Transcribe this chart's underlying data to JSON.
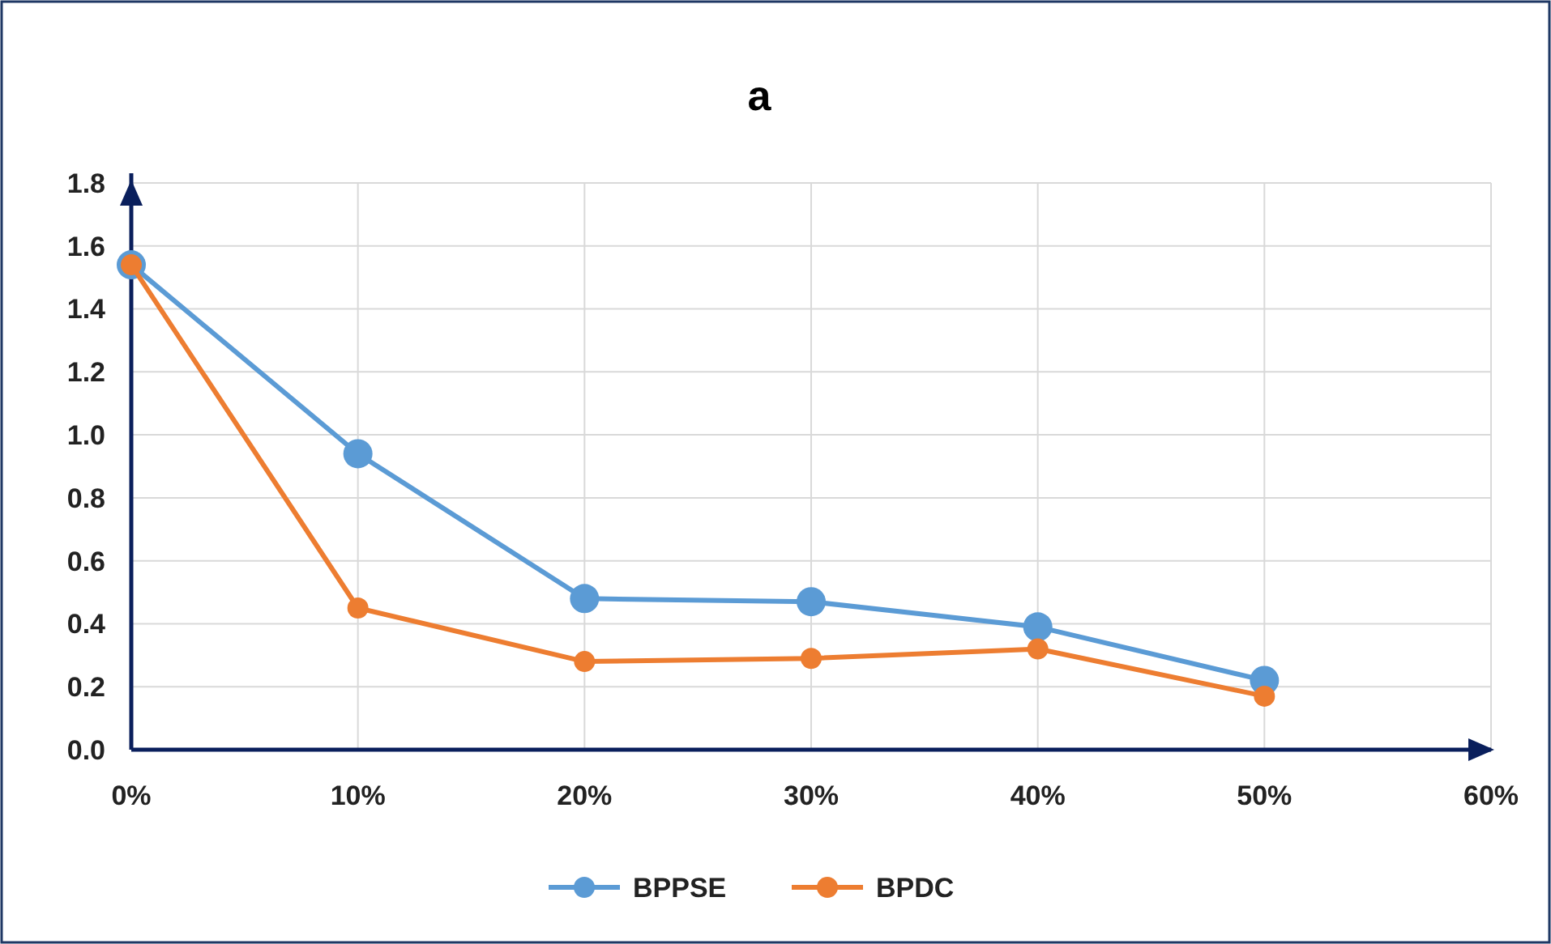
{
  "chart_data": {
    "type": "line",
    "title": "a",
    "x": [
      0,
      10,
      20,
      30,
      40,
      50
    ],
    "xlim": [
      0,
      60
    ],
    "xticks": [
      {
        "value": 0,
        "label": "0%"
      },
      {
        "value": 10,
        "label": "10%"
      },
      {
        "value": 20,
        "label": "20%"
      },
      {
        "value": 30,
        "label": "30%"
      },
      {
        "value": 40,
        "label": "40%"
      },
      {
        "value": 50,
        "label": "50%"
      },
      {
        "value": 60,
        "label": "60%"
      }
    ],
    "ylim": [
      0,
      1.8
    ],
    "yticks": [
      {
        "value": 0,
        "label": "0.0"
      },
      {
        "value": 0.2,
        "label": "0.2"
      },
      {
        "value": 0.4,
        "label": "0.4"
      },
      {
        "value": 0.6,
        "label": "0.6"
      },
      {
        "value": 0.8,
        "label": "0.8"
      },
      {
        "value": 1.0,
        "label": "1.0"
      },
      {
        "value": 1.2,
        "label": "1.2"
      },
      {
        "value": 1.4,
        "label": "1.4"
      },
      {
        "value": 1.6,
        "label": "1.6"
      },
      {
        "value": 1.8,
        "label": "1.8"
      }
    ],
    "series": [
      {
        "name": "BPPSE",
        "color": "#5b9bd5",
        "values": [
          1.54,
          0.94,
          0.48,
          0.47,
          0.39,
          0.22
        ]
      },
      {
        "name": "BPDC",
        "color": "#ed7d31",
        "values": [
          1.54,
          0.45,
          0.28,
          0.29,
          0.32,
          0.17
        ]
      }
    ],
    "grid": true,
    "legend": "bottom",
    "marker": "circle",
    "line_style": "solid"
  }
}
